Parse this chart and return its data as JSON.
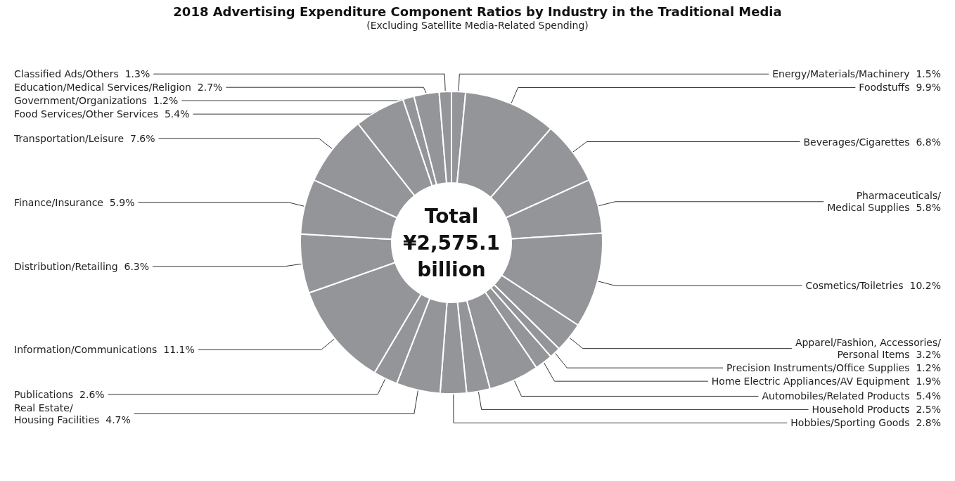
{
  "chart_data": {
    "type": "donut",
    "title": "2018 Advertising Expenditure Component Ratios by Industry in the Traditional Media",
    "subtitle": "(Excluding Satellite Media-Related Spending)",
    "categories": [
      "Energy/Materials/Machinery",
      "Foodstuffs",
      "Beverages/Cigarettes",
      "Pharmaceuticals/\nMedical Supplies",
      "Cosmetics/Toiletries",
      "Apparel/Fashion, Accessories/\nPersonal Items",
      "Precision Instruments/Office Supplies",
      "Home Electric Appliances/AV Equipment",
      "Automobiles/Related Products",
      "Household Products",
      "Hobbies/Sporting Goods",
      "Real Estate/\nHousing Facilities",
      "Publications",
      "Information/Communications",
      "Distribution/Retailing",
      "Finance/Insurance",
      "Transportation/Leisure",
      "Food Services/Other Services",
      "Government/Organizations",
      "Education/Medical Services/Religion",
      "Classified Ads/Others"
    ],
    "values": [
      1.5,
      9.9,
      6.8,
      5.8,
      10.2,
      3.2,
      1.2,
      1.9,
      5.4,
      2.5,
      2.8,
      4.7,
      2.6,
      11.1,
      6.3,
      5.9,
      7.6,
      5.4,
      1.2,
      2.7,
      1.3
    ],
    "value_labels": [
      "1.5%",
      "9.9%",
      "6.8%",
      "5.8%",
      "10.2%",
      "3.2%",
      "1.2%",
      "1.9%",
      "5.4%",
      "2.5%",
      "2.8%",
      "4.7%",
      "2.6%",
      "11.1%",
      "6.3%",
      "5.9%",
      "7.6%",
      "5.4%",
      "1.2%",
      "2.7%",
      "1.3%"
    ],
    "colors": [
      "#939598",
      "#939598",
      "#939598",
      "#939598",
      "#939598",
      "#939598",
      "#939598",
      "#939598",
      "#939598",
      "#939598",
      "#939598",
      "#939598",
      "#939598",
      "#939598",
      "#939598",
      "#939598",
      "#939598",
      "#939598",
      "#939598",
      "#939598",
      "#939598"
    ],
    "annotations": [
      "Total\n¥2,575.1\nbillion"
    ]
  }
}
